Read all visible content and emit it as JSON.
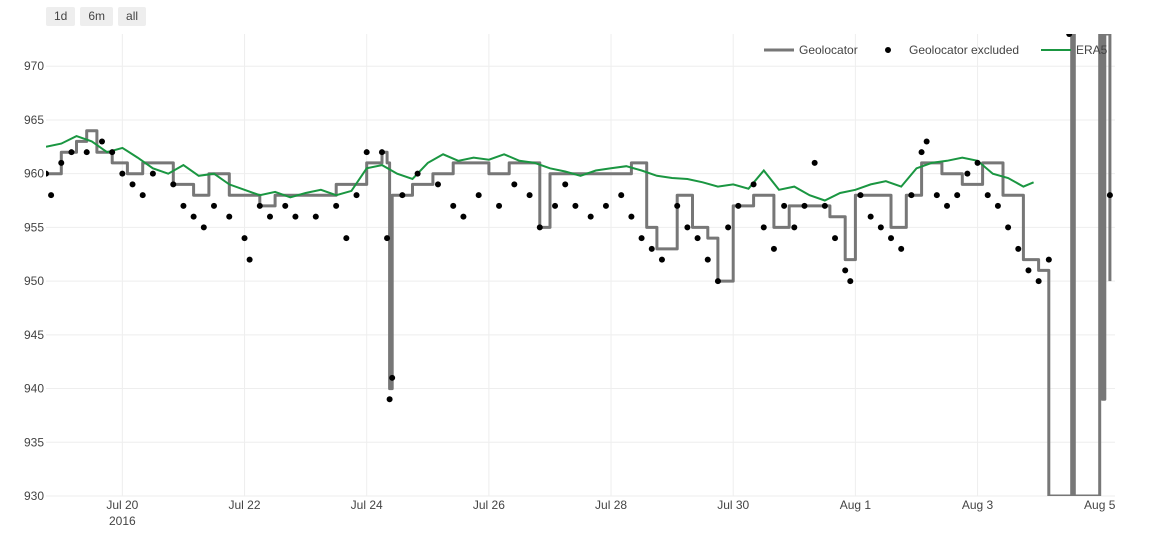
{
  "range_buttons": [
    {
      "label": "1d"
    },
    {
      "label": "6m"
    },
    {
      "label": "all"
    }
  ],
  "chart_data": {
    "type": "line",
    "title": "",
    "xlabel": "",
    "ylabel": "",
    "ylim": [
      930,
      973
    ],
    "xlim_days_label": "2016-07-18T18:00 to 2016-08-05T06:00",
    "x_range": [
      "2016-07-18 18:00",
      "2016-08-05 06:00"
    ],
    "grid": true,
    "legend_position": "top-right",
    "y_ticks": [
      930,
      935,
      940,
      945,
      950,
      955,
      960,
      965,
      970
    ],
    "x_ticks": [
      {
        "date": "2016-07-20",
        "label": "Jul 20",
        "sublabel": "2016"
      },
      {
        "date": "2016-07-22",
        "label": "Jul 22",
        "sublabel": ""
      },
      {
        "date": "2016-07-24",
        "label": "Jul 24",
        "sublabel": ""
      },
      {
        "date": "2016-07-26",
        "label": "Jul 26",
        "sublabel": ""
      },
      {
        "date": "2016-07-28",
        "label": "Jul 28",
        "sublabel": ""
      },
      {
        "date": "2016-07-30",
        "label": "Jul 30",
        "sublabel": ""
      },
      {
        "date": "2016-08-01",
        "label": "Aug 1",
        "sublabel": ""
      },
      {
        "date": "2016-08-03",
        "label": "Aug 3",
        "sublabel": ""
      },
      {
        "date": "2016-08-05",
        "label": "Aug 5",
        "sublabel": ""
      }
    ],
    "colors": {
      "geolocator": "#777777",
      "excluded": "#000000",
      "era5": "#1a9641"
    },
    "series": [
      {
        "name": "Geolocator",
        "kind": "line",
        "points": [
          [
            "2016-07-18 18:00",
            960
          ],
          [
            "2016-07-19 00:00",
            962
          ],
          [
            "2016-07-19 06:00",
            963
          ],
          [
            "2016-07-19 10:00",
            964
          ],
          [
            "2016-07-19 14:00",
            962
          ],
          [
            "2016-07-19 20:00",
            961
          ],
          [
            "2016-07-20 02:00",
            960
          ],
          [
            "2016-07-20 08:00",
            961
          ],
          [
            "2016-07-20 14:00",
            961
          ],
          [
            "2016-07-20 20:00",
            959
          ],
          [
            "2016-07-21 04:00",
            958
          ],
          [
            "2016-07-21 10:00",
            960
          ],
          [
            "2016-07-21 18:00",
            958
          ],
          [
            "2016-07-22 00:00",
            958
          ],
          [
            "2016-07-22 06:00",
            957
          ],
          [
            "2016-07-22 12:00",
            958
          ],
          [
            "2016-07-22 20:00",
            958
          ],
          [
            "2016-07-23 04:00",
            958
          ],
          [
            "2016-07-23 12:00",
            959
          ],
          [
            "2016-07-23 20:00",
            959
          ],
          [
            "2016-07-24 00:00",
            961
          ],
          [
            "2016-07-24 06:00",
            962
          ],
          [
            "2016-07-24 08:00",
            961
          ],
          [
            "2016-07-24 09:00",
            940
          ],
          [
            "2016-07-24 10:00",
            958
          ],
          [
            "2016-07-24 18:00",
            959
          ],
          [
            "2016-07-25 02:00",
            960
          ],
          [
            "2016-07-25 10:00",
            961
          ],
          [
            "2016-07-25 18:00",
            961
          ],
          [
            "2016-07-26 00:00",
            960
          ],
          [
            "2016-07-26 08:00",
            961
          ],
          [
            "2016-07-26 16:00",
            961
          ],
          [
            "2016-07-26 20:00",
            955
          ],
          [
            "2016-07-27 00:00",
            960
          ],
          [
            "2016-07-27 08:00",
            960
          ],
          [
            "2016-07-27 16:00",
            960
          ],
          [
            "2016-07-28 00:00",
            960
          ],
          [
            "2016-07-28 08:00",
            961
          ],
          [
            "2016-07-28 14:00",
            955
          ],
          [
            "2016-07-28 18:00",
            953
          ],
          [
            "2016-07-29 02:00",
            958
          ],
          [
            "2016-07-29 08:00",
            955
          ],
          [
            "2016-07-29 14:00",
            954
          ],
          [
            "2016-07-29 18:00",
            950
          ],
          [
            "2016-07-30 00:00",
            957
          ],
          [
            "2016-07-30 08:00",
            958
          ],
          [
            "2016-07-30 16:00",
            955
          ],
          [
            "2016-07-30 22:00",
            957
          ],
          [
            "2016-07-31 06:00",
            957
          ],
          [
            "2016-07-31 14:00",
            956
          ],
          [
            "2016-07-31 20:00",
            952
          ],
          [
            "2016-08-01 00:00",
            958
          ],
          [
            "2016-08-01 06:00",
            958
          ],
          [
            "2016-08-01 14:00",
            955
          ],
          [
            "2016-08-01 20:00",
            958
          ],
          [
            "2016-08-02 02:00",
            961
          ],
          [
            "2016-08-02 10:00",
            960
          ],
          [
            "2016-08-02 18:00",
            959
          ],
          [
            "2016-08-03 02:00",
            961
          ],
          [
            "2016-08-03 10:00",
            958
          ],
          [
            "2016-08-03 18:00",
            952
          ],
          [
            "2016-08-04 00:00",
            951
          ],
          [
            "2016-08-04 04:00",
            930
          ],
          [
            "2016-08-04 12:00",
            930
          ],
          [
            "2016-08-04 13:00",
            973
          ],
          [
            "2016-08-04 14:00",
            930
          ],
          [
            "2016-08-04 20:00",
            930
          ],
          [
            "2016-08-05 00:00",
            973
          ],
          [
            "2016-08-05 01:00",
            939
          ],
          [
            "2016-08-05 02:00",
            973
          ],
          [
            "2016-08-05 04:00",
            950
          ]
        ]
      },
      {
        "name": "Geolocator excluded",
        "kind": "markers",
        "points": [
          [
            "2016-07-18 18:00",
            960
          ],
          [
            "2016-07-18 20:00",
            958
          ],
          [
            "2016-07-19 00:00",
            961
          ],
          [
            "2016-07-19 04:00",
            962
          ],
          [
            "2016-07-19 10:00",
            962
          ],
          [
            "2016-07-19 16:00",
            963
          ],
          [
            "2016-07-19 20:00",
            962
          ],
          [
            "2016-07-20 00:00",
            960
          ],
          [
            "2016-07-20 04:00",
            959
          ],
          [
            "2016-07-20 08:00",
            958
          ],
          [
            "2016-07-20 12:00",
            960
          ],
          [
            "2016-07-20 20:00",
            959
          ],
          [
            "2016-07-21 00:00",
            957
          ],
          [
            "2016-07-21 04:00",
            956
          ],
          [
            "2016-07-21 08:00",
            955
          ],
          [
            "2016-07-21 12:00",
            957
          ],
          [
            "2016-07-21 18:00",
            956
          ],
          [
            "2016-07-22 00:00",
            954
          ],
          [
            "2016-07-22 02:00",
            952
          ],
          [
            "2016-07-22 06:00",
            957
          ],
          [
            "2016-07-22 10:00",
            956
          ],
          [
            "2016-07-22 16:00",
            957
          ],
          [
            "2016-07-22 20:00",
            956
          ],
          [
            "2016-07-23 04:00",
            956
          ],
          [
            "2016-07-23 12:00",
            957
          ],
          [
            "2016-07-23 16:00",
            954
          ],
          [
            "2016-07-23 20:00",
            958
          ],
          [
            "2016-07-24 00:00",
            962
          ],
          [
            "2016-07-24 06:00",
            962
          ],
          [
            "2016-07-24 08:00",
            954
          ],
          [
            "2016-07-24 09:00",
            939
          ],
          [
            "2016-07-24 10:00",
            941
          ],
          [
            "2016-07-24 14:00",
            958
          ],
          [
            "2016-07-24 20:00",
            960
          ],
          [
            "2016-07-25 04:00",
            959
          ],
          [
            "2016-07-25 10:00",
            957
          ],
          [
            "2016-07-25 14:00",
            956
          ],
          [
            "2016-07-25 20:00",
            958
          ],
          [
            "2016-07-26 04:00",
            957
          ],
          [
            "2016-07-26 10:00",
            959
          ],
          [
            "2016-07-26 16:00",
            958
          ],
          [
            "2016-07-26 20:00",
            955
          ],
          [
            "2016-07-27 02:00",
            957
          ],
          [
            "2016-07-27 06:00",
            959
          ],
          [
            "2016-07-27 10:00",
            957
          ],
          [
            "2016-07-27 16:00",
            956
          ],
          [
            "2016-07-27 22:00",
            957
          ],
          [
            "2016-07-28 04:00",
            958
          ],
          [
            "2016-07-28 08:00",
            956
          ],
          [
            "2016-07-28 12:00",
            954
          ],
          [
            "2016-07-28 16:00",
            953
          ],
          [
            "2016-07-28 20:00",
            952
          ],
          [
            "2016-07-29 02:00",
            957
          ],
          [
            "2016-07-29 06:00",
            955
          ],
          [
            "2016-07-29 10:00",
            954
          ],
          [
            "2016-07-29 14:00",
            952
          ],
          [
            "2016-07-29 18:00",
            950
          ],
          [
            "2016-07-29 22:00",
            955
          ],
          [
            "2016-07-30 02:00",
            957
          ],
          [
            "2016-07-30 08:00",
            959
          ],
          [
            "2016-07-30 12:00",
            955
          ],
          [
            "2016-07-30 16:00",
            953
          ],
          [
            "2016-07-30 20:00",
            957
          ],
          [
            "2016-07-31 00:00",
            955
          ],
          [
            "2016-07-31 04:00",
            957
          ],
          [
            "2016-07-31 08:00",
            961
          ],
          [
            "2016-07-31 12:00",
            957
          ],
          [
            "2016-07-31 16:00",
            954
          ],
          [
            "2016-07-31 20:00",
            951
          ],
          [
            "2016-07-31 22:00",
            950
          ],
          [
            "2016-08-01 02:00",
            958
          ],
          [
            "2016-08-01 06:00",
            956
          ],
          [
            "2016-08-01 10:00",
            955
          ],
          [
            "2016-08-01 14:00",
            954
          ],
          [
            "2016-08-01 18:00",
            953
          ],
          [
            "2016-08-01 22:00",
            958
          ],
          [
            "2016-08-02 02:00",
            962
          ],
          [
            "2016-08-02 04:00",
            963
          ],
          [
            "2016-08-02 08:00",
            958
          ],
          [
            "2016-08-02 12:00",
            957
          ],
          [
            "2016-08-02 16:00",
            958
          ],
          [
            "2016-08-02 20:00",
            960
          ],
          [
            "2016-08-03 00:00",
            961
          ],
          [
            "2016-08-03 04:00",
            958
          ],
          [
            "2016-08-03 08:00",
            957
          ],
          [
            "2016-08-03 12:00",
            955
          ],
          [
            "2016-08-03 16:00",
            953
          ],
          [
            "2016-08-03 20:00",
            951
          ],
          [
            "2016-08-04 00:00",
            950
          ],
          [
            "2016-08-04 04:00",
            952
          ],
          [
            "2016-08-04 12:00",
            973
          ],
          [
            "2016-08-05 04:00",
            958
          ]
        ]
      },
      {
        "name": "ERA5",
        "kind": "line",
        "points": [
          [
            "2016-07-18 18:00",
            962.5
          ],
          [
            "2016-07-19 00:00",
            962.8
          ],
          [
            "2016-07-19 06:00",
            963.5
          ],
          [
            "2016-07-19 12:00",
            963.0
          ],
          [
            "2016-07-19 18:00",
            962.0
          ],
          [
            "2016-07-20 00:00",
            962.4
          ],
          [
            "2016-07-20 06:00",
            961.5
          ],
          [
            "2016-07-20 12:00",
            960.5
          ],
          [
            "2016-07-20 18:00",
            960.0
          ],
          [
            "2016-07-21 00:00",
            960.8
          ],
          [
            "2016-07-21 06:00",
            959.8
          ],
          [
            "2016-07-21 12:00",
            960.0
          ],
          [
            "2016-07-21 18:00",
            959.0
          ],
          [
            "2016-07-22 00:00",
            958.5
          ],
          [
            "2016-07-22 06:00",
            958.0
          ],
          [
            "2016-07-22 12:00",
            958.3
          ],
          [
            "2016-07-22 18:00",
            957.8
          ],
          [
            "2016-07-23 00:00",
            958.2
          ],
          [
            "2016-07-23 06:00",
            958.5
          ],
          [
            "2016-07-23 12:00",
            958.0
          ],
          [
            "2016-07-23 18:00",
            958.4
          ],
          [
            "2016-07-24 00:00",
            960.5
          ],
          [
            "2016-07-24 06:00",
            960.8
          ],
          [
            "2016-07-24 12:00",
            960.0
          ],
          [
            "2016-07-24 18:00",
            959.5
          ],
          [
            "2016-07-25 00:00",
            961.0
          ],
          [
            "2016-07-25 06:00",
            961.8
          ],
          [
            "2016-07-25 12:00",
            961.2
          ],
          [
            "2016-07-25 18:00",
            961.5
          ],
          [
            "2016-07-26 00:00",
            961.3
          ],
          [
            "2016-07-26 06:00",
            961.8
          ],
          [
            "2016-07-26 12:00",
            961.2
          ],
          [
            "2016-07-26 18:00",
            961.0
          ],
          [
            "2016-07-27 00:00",
            960.5
          ],
          [
            "2016-07-27 06:00",
            960.2
          ],
          [
            "2016-07-27 12:00",
            959.8
          ],
          [
            "2016-07-27 18:00",
            960.3
          ],
          [
            "2016-07-28 00:00",
            960.5
          ],
          [
            "2016-07-28 06:00",
            960.7
          ],
          [
            "2016-07-28 12:00",
            960.3
          ],
          [
            "2016-07-28 18:00",
            959.8
          ],
          [
            "2016-07-29 00:00",
            959.6
          ],
          [
            "2016-07-29 06:00",
            959.5
          ],
          [
            "2016-07-29 12:00",
            959.2
          ],
          [
            "2016-07-29 18:00",
            958.8
          ],
          [
            "2016-07-30 00:00",
            959.0
          ],
          [
            "2016-07-30 06:00",
            958.6
          ],
          [
            "2016-07-30 12:00",
            960.3
          ],
          [
            "2016-07-30 18:00",
            958.5
          ],
          [
            "2016-07-31 00:00",
            958.8
          ],
          [
            "2016-07-31 06:00",
            958.0
          ],
          [
            "2016-07-31 12:00",
            957.5
          ],
          [
            "2016-07-31 18:00",
            958.2
          ],
          [
            "2016-08-01 00:00",
            958.5
          ],
          [
            "2016-08-01 06:00",
            959.0
          ],
          [
            "2016-08-01 12:00",
            959.3
          ],
          [
            "2016-08-01 18:00",
            958.8
          ],
          [
            "2016-08-02 00:00",
            960.5
          ],
          [
            "2016-08-02 06:00",
            961.0
          ],
          [
            "2016-08-02 12:00",
            961.2
          ],
          [
            "2016-08-02 18:00",
            961.5
          ],
          [
            "2016-08-03 00:00",
            961.2
          ],
          [
            "2016-08-03 06:00",
            960.0
          ],
          [
            "2016-08-03 12:00",
            959.6
          ],
          [
            "2016-08-03 18:00",
            958.8
          ],
          [
            "2016-08-03 22:00",
            959.2
          ]
        ]
      }
    ],
    "legend": [
      {
        "name": "Geolocator",
        "kind": "line"
      },
      {
        "name": "Geolocator excluded",
        "kind": "markers"
      },
      {
        "name": "ERA5",
        "kind": "line"
      }
    ]
  }
}
